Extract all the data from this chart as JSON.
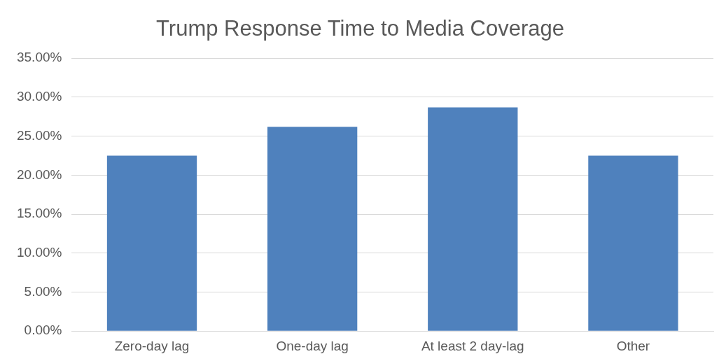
{
  "chart_data": {
    "type": "bar",
    "title": "Trump Response Time to Media Coverage",
    "categories": [
      "Zero-day lag",
      "One-day lag",
      "At least 2 day-lag",
      "Other"
    ],
    "values": [
      22.5,
      26.2,
      28.7,
      22.5
    ],
    "color": "#4f81bd",
    "ylim": [
      0,
      35
    ],
    "yticks": [
      {
        "value": 0,
        "label": "0.00%"
      },
      {
        "value": 5,
        "label": "5.00%"
      },
      {
        "value": 10,
        "label": "10.00%"
      },
      {
        "value": 15,
        "label": "15.00%"
      },
      {
        "value": 20,
        "label": "20.00%"
      },
      {
        "value": 25,
        "label": "25.00%"
      },
      {
        "value": 30,
        "label": "30.00%"
      },
      {
        "value": 35,
        "label": "35.00%"
      }
    ],
    "grid": "y",
    "legend": false
  }
}
